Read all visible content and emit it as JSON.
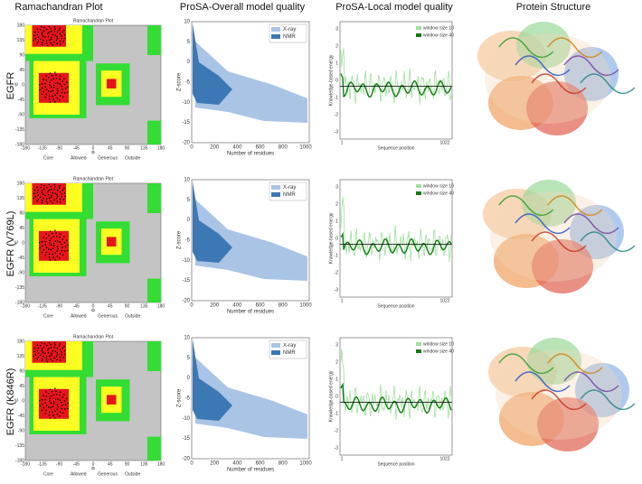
{
  "header": {
    "columns": [
      "Ramachandran Plot",
      "ProSA-Overall model quality",
      "ProSA-Local model quality",
      "Protein Structure"
    ]
  },
  "rows": [
    {
      "label": "EGFR",
      "ramachandran": {
        "title": "Ramachandran Plot",
        "x_label": "Φ",
        "y_label": "Ψ",
        "ticks": [
          "-180",
          "-135",
          "-90",
          "-45",
          "0",
          "45",
          "90",
          "135",
          "180"
        ],
        "legend": [
          "Core",
          "Allowed",
          "Generous",
          "Outside"
        ]
      },
      "overall": {
        "y_label": "Z-score",
        "x_label": "Number of residues",
        "yticks": [
          "10",
          "5",
          "0",
          "-5",
          "-10",
          "-15",
          "-20"
        ],
        "xticks": [
          "0",
          "200",
          "400",
          "600",
          "800",
          "1000"
        ],
        "legend": [
          "X-ray",
          "NMR"
        ]
      },
      "local": {
        "y_label": "Knowledge-based energy",
        "x_label": "Sequence position",
        "yticks": [
          "3",
          "2",
          "1",
          "0",
          "-1",
          "-2",
          "-3"
        ],
        "xticks": [
          "1",
          "1022"
        ],
        "legend": [
          "window size 10",
          "window size 40"
        ]
      }
    },
    {
      "label": "EGFR (V769L)",
      "ramachandran": {
        "title": "Ramachandran Plot",
        "x_label": "Φ",
        "y_label": "Ψ",
        "ticks": [
          "-180",
          "-135",
          "-90",
          "-45",
          "0",
          "45",
          "90",
          "135",
          "180"
        ],
        "legend": [
          "Core",
          "Allowed",
          "Generous",
          "Outside"
        ]
      },
      "overall": {
        "y_label": "Z-score",
        "x_label": "Number of residues",
        "yticks": [
          "10",
          "5",
          "0",
          "-5",
          "-10",
          "-15",
          "-20"
        ],
        "xticks": [
          "0",
          "200",
          "400",
          "600",
          "800",
          "1000"
        ],
        "legend": [
          "X-ray",
          "NMR"
        ]
      },
      "local": {
        "y_label": "Knowledge-based energy",
        "x_label": "Sequence position",
        "yticks": [
          "3",
          "2",
          "1",
          "0",
          "-1",
          "-2",
          "-3"
        ],
        "xticks": [
          "1",
          "1022"
        ],
        "legend": [
          "window size 10",
          "window size 40"
        ]
      }
    },
    {
      "label": "EGFR (K846R)",
      "ramachandran": {
        "title": "Ramachandran Plot",
        "x_label": "Φ",
        "y_label": "Ψ",
        "ticks": [
          "-180",
          "-135",
          "-90",
          "-45",
          "0",
          "45",
          "90",
          "135",
          "180"
        ],
        "legend": [
          "Core",
          "Allowed",
          "Generous",
          "Outside"
        ]
      },
      "overall": {
        "y_label": "Z-score",
        "x_label": "Number of residues",
        "yticks": [
          "10",
          "5",
          "0",
          "-5",
          "-10",
          "-15",
          "-20"
        ],
        "xticks": [
          "0",
          "200",
          "400",
          "600",
          "800",
          "1000"
        ],
        "legend": [
          "X-ray",
          "NMR"
        ]
      },
      "local": {
        "y_label": "Knowledge-based energy",
        "x_label": "Sequence position",
        "yticks": [
          "3",
          "2",
          "1",
          "0",
          "-1",
          "-2",
          "-3"
        ],
        "xticks": [
          "1",
          "1022"
        ],
        "legend": [
          "window size 10",
          "window size 40"
        ]
      }
    }
  ]
}
